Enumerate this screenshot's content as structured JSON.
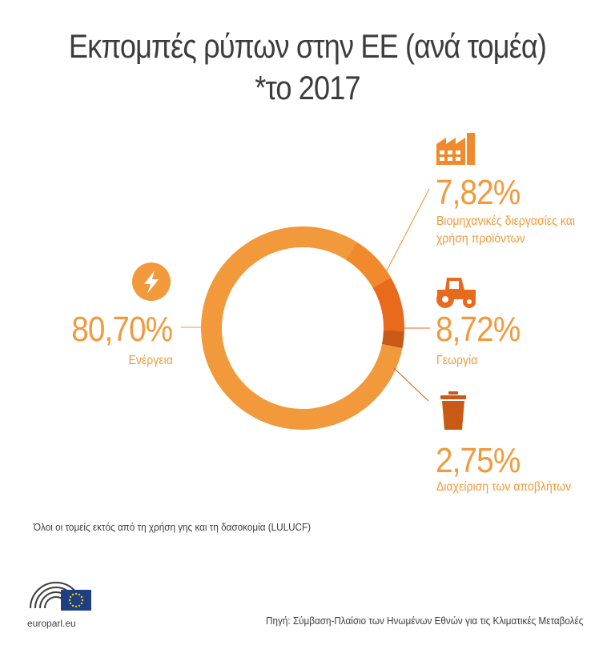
{
  "title_line1": "Εκπομπές ρύπων στην ΕΕ (ανά τομέα)",
  "title_line2": "*το 2017",
  "chart_data": {
    "type": "pie",
    "style": "donut",
    "series": [
      {
        "name": "Ενέργεια",
        "value": 80.7,
        "value_label": "80,70%",
        "color": "#f29a3b",
        "icon": "lightning-icon"
      },
      {
        "name": "Βιομηχανικές διεργασίες και χρήση προϊόντων",
        "name_lines": [
          "Βιομηχανικές διεργασίες και",
          "χρήση προϊόντων"
        ],
        "value": 7.82,
        "value_label": "7,82%",
        "color": "#f18a2d",
        "icon": "factory-icon"
      },
      {
        "name": "Γεωργία",
        "value": 8.72,
        "value_label": "8,72%",
        "color": "#ea6a1c",
        "icon": "tractor-icon"
      },
      {
        "name": "Διαχείριση των αποβλήτων",
        "value": 2.75,
        "value_label": "2,75%",
        "color": "#c95a16",
        "icon": "trash-can-icon"
      }
    ],
    "legend": "none"
  },
  "note": "Όλοι οι τομείς εκτός από τη χρήση γης και τη δασοκομία (LULUCF)",
  "source": "Πηγή: Σύμβαση-Πλαίσιο των Ηνωμένων Εθνών για τις Κλιματικές Μεταβολές",
  "brand": "europarl.eu",
  "colors": {
    "title": "#3c3c3c",
    "accent": "#f29a3b",
    "eu_blue": "#1f3f84",
    "eu_star": "#ffcc00"
  }
}
